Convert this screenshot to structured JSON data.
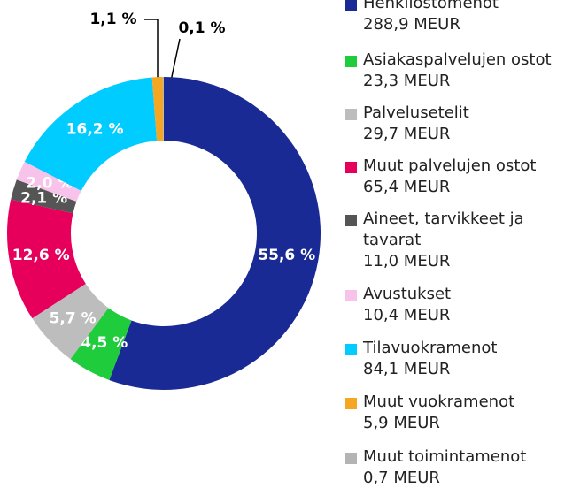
{
  "chart_data": {
    "type": "donut",
    "categories": [
      "Henkilöstömenot",
      "Asiakaspalvelujen ostot",
      "Palvelusetelit",
      "Muut palvelujen ostot",
      "Aineet, tarvikkeet ja tavarat",
      "Avustukset",
      "Tilavuokramenot",
      "Muut vuokramenot",
      "Muut toimintamenot"
    ],
    "values": [
      55.6,
      4.5,
      5.7,
      12.6,
      2.1,
      2.0,
      16.2,
      1.1,
      0.1
    ],
    "value_labels": [
      "55,6 %",
      "4,5 %",
      "5,7 %",
      "12,6 %",
      "2,1 %",
      "2,0 %",
      "16,2 %",
      "1,1 %",
      "0,1 %"
    ],
    "amounts": [
      288.9,
      23.3,
      29.7,
      65.4,
      11.0,
      10.4,
      84.1,
      5.9,
      0.7
    ],
    "amount_labels": [
      "288,9 MEUR",
      "23,3 MEUR",
      "29,7 MEUR",
      "65,4 MEUR",
      "11,0 MEUR",
      "10,4 MEUR",
      "84,1 MEUR",
      "5,9 MEUR",
      "0,7 MEUR"
    ],
    "colors": [
      "#1a2a94",
      "#1fcc3c",
      "#bdbdbd",
      "#e6005c",
      "#555555",
      "#f8c3ea",
      "#00ccff",
      "#f5a623",
      "#b4b4b4"
    ]
  }
}
